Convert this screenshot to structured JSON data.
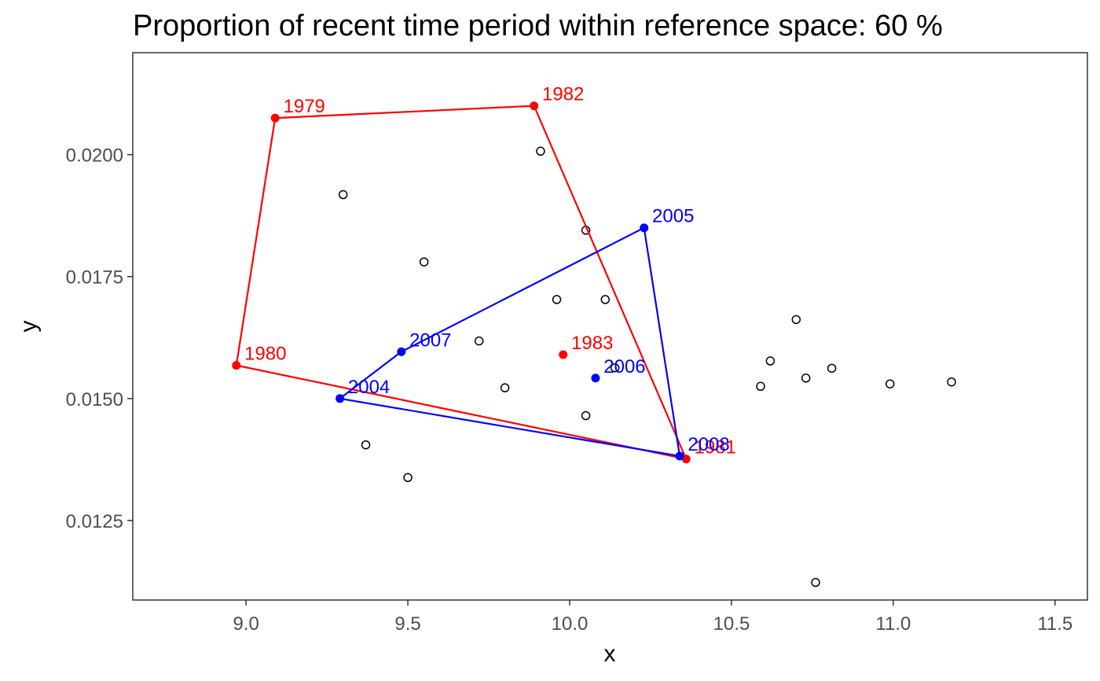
{
  "chart_data": {
    "type": "scatter",
    "title": "Proportion of recent time period within reference space: 60 %",
    "xlabel": "x",
    "ylabel": "y",
    "xlim": [
      8.65,
      11.6
    ],
    "ylim": [
      0.01087,
      0.02209
    ],
    "grid": false,
    "x_ticks": [
      {
        "value": 9.0,
        "label": "9.0"
      },
      {
        "value": 9.5,
        "label": "9.5"
      },
      {
        "value": 10.0,
        "label": "10.0"
      },
      {
        "value": 10.5,
        "label": "10.5"
      },
      {
        "value": 11.0,
        "label": "11.0"
      },
      {
        "value": 11.5,
        "label": "11.5"
      }
    ],
    "y_ticks": [
      {
        "value": 0.0125,
        "label": "0.0125"
      },
      {
        "value": 0.015,
        "label": "0.0150"
      },
      {
        "value": 0.0175,
        "label": "0.0175"
      },
      {
        "value": 0.02,
        "label": "0.0200"
      }
    ],
    "background_points": [
      {
        "x": 9.3,
        "y": 0.01918
      },
      {
        "x": 9.91,
        "y": 0.02007
      },
      {
        "x": 10.05,
        "y": 0.01845
      },
      {
        "x": 9.55,
        "y": 0.0178
      },
      {
        "x": 9.96,
        "y": 0.01703
      },
      {
        "x": 10.11,
        "y": 0.01703
      },
      {
        "x": 9.72,
        "y": 0.01618
      },
      {
        "x": 9.8,
        "y": 0.01522
      },
      {
        "x": 10.14,
        "y": 0.01563
      },
      {
        "x": 10.05,
        "y": 0.01465
      },
      {
        "x": 9.37,
        "y": 0.01405
      },
      {
        "x": 9.5,
        "y": 0.01338
      },
      {
        "x": 10.7,
        "y": 0.01662
      },
      {
        "x": 10.62,
        "y": 0.01577
      },
      {
        "x": 10.59,
        "y": 0.01525
      },
      {
        "x": 10.73,
        "y": 0.01542
      },
      {
        "x": 10.81,
        "y": 0.01562
      },
      {
        "x": 10.99,
        "y": 0.0153
      },
      {
        "x": 11.18,
        "y": 0.01534
      },
      {
        "x": 10.76,
        "y": 0.01123
      }
    ],
    "series": [
      {
        "color": "#ff0000",
        "points": [
          {
            "label": "1979",
            "x": 9.09,
            "y": 0.02075
          },
          {
            "label": "1980",
            "x": 8.97,
            "y": 0.01568
          },
          {
            "label": "1981",
            "x": 10.36,
            "y": 0.01376
          },
          {
            "label": "1982",
            "x": 9.89,
            "y": 0.021
          },
          {
            "label": "1983",
            "x": 9.98,
            "y": 0.0159
          }
        ],
        "hull": [
          "1979",
          "1982",
          "1981",
          "1980"
        ]
      },
      {
        "color": "#0000ff",
        "points": [
          {
            "label": "2004",
            "x": 9.29,
            "y": 0.015
          },
          {
            "label": "2005",
            "x": 10.23,
            "y": 0.0185
          },
          {
            "label": "2006",
            "x": 10.08,
            "y": 0.01542
          },
          {
            "label": "2007",
            "x": 9.48,
            "y": 0.01596
          },
          {
            "label": "2008",
            "x": 10.34,
            "y": 0.01382
          }
        ],
        "hull": [
          "2004",
          "2007",
          "2005",
          "2008"
        ]
      }
    ]
  }
}
